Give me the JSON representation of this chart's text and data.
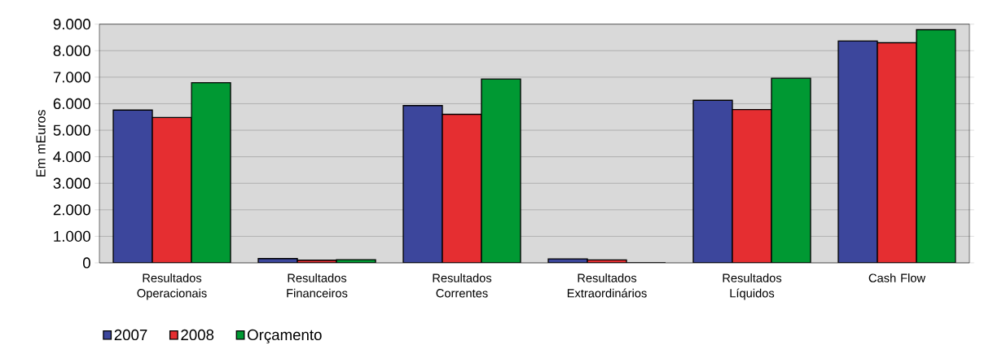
{
  "chart_data": {
    "type": "bar",
    "ylabel": "Em mEuros",
    "categories": [
      "Resultados Operacionais",
      "Resultados Financeiros",
      "Resultados Correntes",
      "Resultados Extraordinários",
      "Resultados Líquidos",
      "Cash Flow"
    ],
    "series": [
      {
        "name": "2007",
        "color": "#3c469c",
        "values": [
          5760,
          160,
          5930,
          150,
          6130,
          8370
        ]
      },
      {
        "name": "2008",
        "color": "#e52e31",
        "values": [
          5480,
          100,
          5600,
          110,
          5780,
          8300
        ]
      },
      {
        "name": "Orçamento",
        "color": "#009933",
        "values": [
          6790,
          120,
          6930,
          0,
          6960,
          8790
        ]
      }
    ],
    "ylim": [
      0,
      9000
    ],
    "yticks": [
      {
        "value": 0,
        "label": "0"
      },
      {
        "value": 1000,
        "label": "1.000"
      },
      {
        "value": 2000,
        "label": "2.000"
      },
      {
        "value": 3000,
        "label": "3.000"
      },
      {
        "value": 4000,
        "label": "4.000"
      },
      {
        "value": 5000,
        "label": "5.000"
      },
      {
        "value": 6000,
        "label": "6.000"
      },
      {
        "value": 7000,
        "label": "7.000"
      },
      {
        "value": 8000,
        "label": "8.000"
      },
      {
        "value": 9000,
        "label": "9.000"
      }
    ],
    "grid": "y",
    "legend": "bottom left"
  }
}
